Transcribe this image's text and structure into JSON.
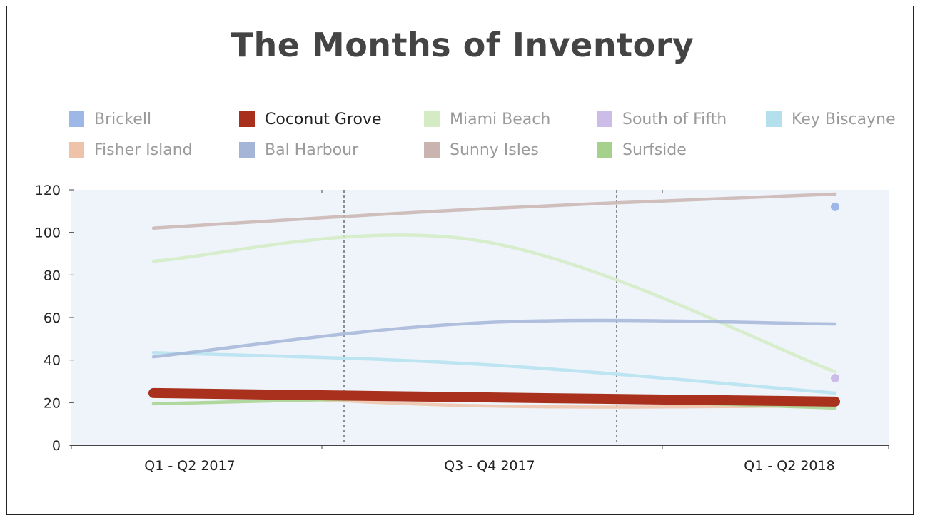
{
  "chart_data": {
    "type": "line",
    "title": "The Months of Inventory",
    "categories": [
      "Q1 - Q2 2017",
      "Q3 - Q4 2017",
      "Q1 - Q2 2018"
    ],
    "ylim": [
      0,
      120
    ],
    "yticks": [
      0,
      20,
      40,
      60,
      80,
      100,
      120
    ],
    "grid": false,
    "legend_position": "top",
    "highlighted_series": "Coconut Grove",
    "series": [
      {
        "name": "Brickell",
        "color": "#9db8e6",
        "values": [
          null,
          null,
          112
        ]
      },
      {
        "name": "Coconut Grove",
        "color": "#a8301c",
        "values": [
          24.5,
          22.5,
          20.5
        ]
      },
      {
        "name": "Miami Beach",
        "color": "#d4ebc3",
        "values": [
          86.5,
          96,
          34.5
        ]
      },
      {
        "name": "South of Fifth",
        "color": "#cbbde8",
        "values": [
          null,
          null,
          31.5
        ]
      },
      {
        "name": "Key Biscayne",
        "color": "#b4e0ee",
        "values": [
          43.5,
          38,
          24.5
        ]
      },
      {
        "name": "Fisher Island",
        "color": "#efc3a9",
        "values": [
          25.5,
          18.5,
          18.5
        ]
      },
      {
        "name": "Bal Harbour",
        "color": "#a5b5d8",
        "values": [
          41.5,
          57.5,
          57
        ]
      },
      {
        "name": "Sunny Isles",
        "color": "#c9b4b0",
        "values": [
          102,
          111,
          118
        ]
      },
      {
        "name": "Surfside",
        "color": "#a5d18c",
        "values": [
          19.5,
          22,
          17.5
        ]
      }
    ]
  }
}
